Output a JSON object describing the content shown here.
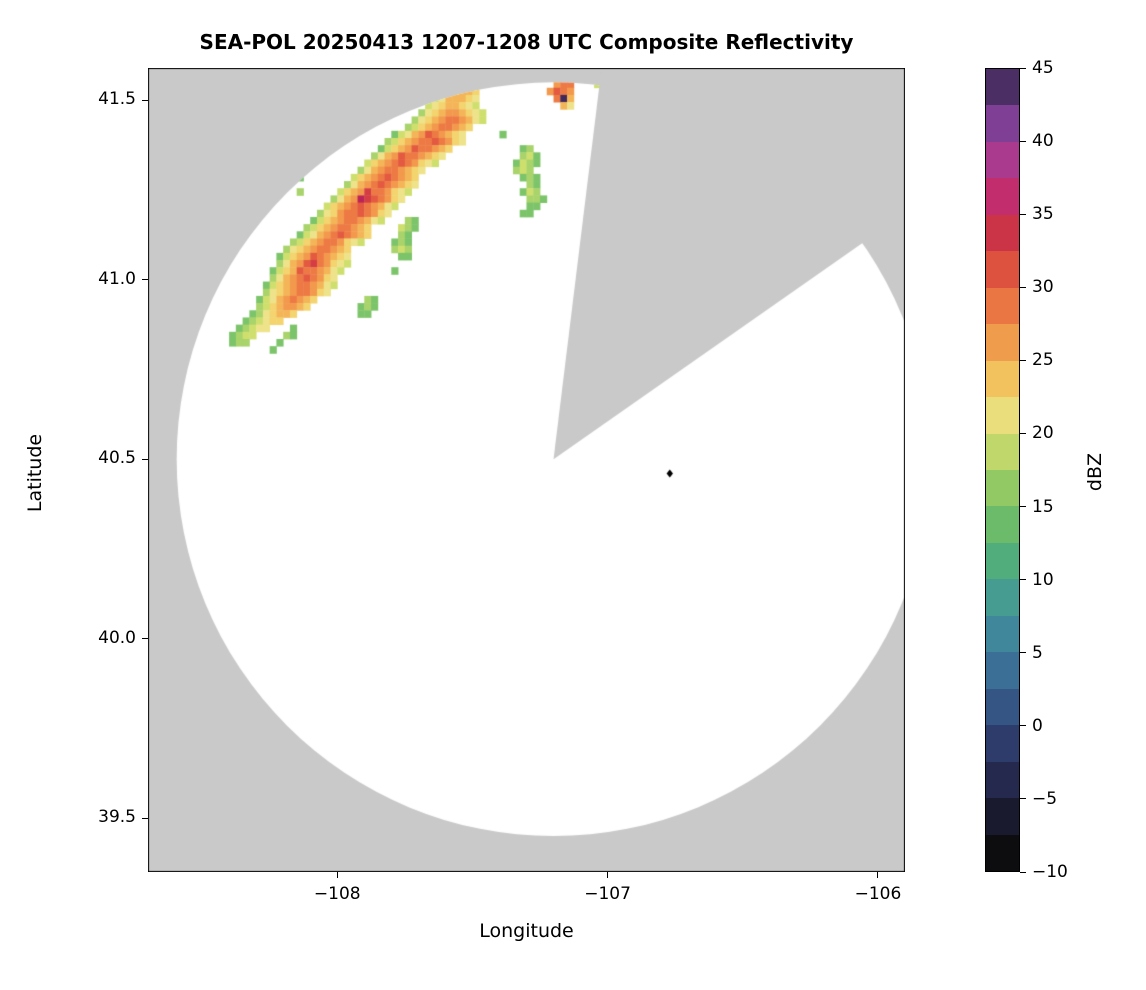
{
  "chart_data": {
    "type": "heatmap",
    "title": "SEA-POL 20250413 1207-1208 UTC Composite Reflectivity",
    "xlabel": "Longitude",
    "ylabel": "Latitude",
    "xlim": [
      -108.7,
      -105.9
    ],
    "ylim": [
      39.35,
      41.59
    ],
    "xticks": [
      -108,
      -107,
      -106
    ],
    "xtick_labels": [
      "−108",
      "−107",
      "−106"
    ],
    "yticks": [
      39.5,
      40.0,
      40.5,
      41.0,
      41.5
    ],
    "ytick_labels": [
      "39.5",
      "40.0",
      "40.5",
      "41.0",
      "41.5"
    ],
    "grid": false,
    "background_color": "#c9c9c9",
    "scan_area_color": "#ffffff",
    "colorbar": {
      "label": "dBZ",
      "min": -10,
      "max": 45,
      "ticks": [
        45,
        40,
        35,
        30,
        25,
        20,
        15,
        10,
        5,
        0,
        -5,
        -10
      ],
      "tick_labels": [
        "45",
        "40",
        "35",
        "30",
        "25",
        "20",
        "15",
        "10",
        "5",
        "0",
        "−5",
        "−10"
      ],
      "segment_colors": [
        "#0d0d10",
        "#191a2e",
        "#24294d",
        "#2d3c6a",
        "#355584",
        "#3c6f96",
        "#41879c",
        "#479c92",
        "#52ad7d",
        "#6cbb6a",
        "#93c965",
        "#c0d76c",
        "#eade7c",
        "#f2c25f",
        "#f09c4d",
        "#ea7643",
        "#dd513f",
        "#cb3347",
        "#c12d6d",
        "#a93a8e",
        "#7e3f94",
        "#4b2e63"
      ]
    },
    "radar": {
      "center_lon": -107.2,
      "center_lat": 40.5,
      "range_deg_lon": 1.394,
      "blocked_sector_azimuth_deg": [
        7,
        55
      ],
      "marker": {
        "lon": -106.77,
        "lat": 40.46,
        "color": "#000000"
      }
    },
    "echo_grid": {
      "comment": "Composite reflectivity cells; lon = lon_start + col*dlon, lat = lat_start - row*dlat; chars map to dBZ via level_dbz",
      "lon_start": -108.5,
      "lat_start": 41.575,
      "dlon": 0.025,
      "dlat": 0.02,
      "level_dbz": {
        "2": 13,
        "3": 15,
        "4": 17,
        "5": 19,
        "6": 21,
        "7": 23,
        "8": 25,
        "9": 27,
        "a": 29,
        "b": 31,
        "c": 34,
        "e": 44
      },
      "level_colors": {
        "2": "#7cc46a",
        "3": "#a9d36b",
        "4": "#cfdf6e",
        "5": "#eee38a",
        "6": "#f3d46e",
        "7": "#f4b558",
        "8": "#f2994d",
        "9": "#ed7a45",
        "a": "#e35a40",
        "b": "#d43d42",
        "c": "#bb2456",
        "e": "#42295b"
      },
      "cells": [
        [
          0,
          37,
          "466"
        ],
        [
          0,
          53,
          "89"
        ],
        [
          1,
          36,
          "45665"
        ],
        [
          1,
          52,
          "899"
        ],
        [
          1,
          58,
          "4"
        ],
        [
          2,
          35,
          "466776"
        ],
        [
          2,
          51,
          "8a98"
        ],
        [
          3,
          34,
          "4577765"
        ],
        [
          3,
          52,
          "9e7"
        ],
        [
          4,
          33,
          "45677654"
        ],
        [
          4,
          53,
          "75"
        ],
        [
          5,
          32,
          "3567887654"
        ],
        [
          6,
          31,
          "35678998754"
        ],
        [
          7,
          30,
          "3467899876"
        ],
        [
          8,
          28,
          "24578a98765"
        ],
        [
          8,
          44,
          "2"
        ],
        [
          9,
          27,
          "3467899a9865"
        ],
        [
          10,
          26,
          "24678a99876"
        ],
        [
          10,
          47,
          "23"
        ],
        [
          11,
          25,
          "3578a998765"
        ],
        [
          11,
          47,
          "342"
        ],
        [
          12,
          24,
          "46789a98654"
        ],
        [
          12,
          46,
          "2432"
        ],
        [
          13,
          23,
          "3578998765"
        ],
        [
          13,
          46,
          "343"
        ],
        [
          14,
          13,
          "42"
        ],
        [
          14,
          22,
          "46789a9876"
        ],
        [
          14,
          47,
          "232"
        ],
        [
          15,
          21,
          "35789a98765"
        ],
        [
          15,
          48,
          "32"
        ],
        [
          16,
          14,
          "3"
        ],
        [
          16,
          20,
          "4678b998654"
        ],
        [
          16,
          47,
          "243"
        ],
        [
          17,
          19,
          "3578cba9865"
        ],
        [
          17,
          48,
          "332"
        ],
        [
          18,
          18,
          "46789a98754"
        ],
        [
          18,
          48,
          "22"
        ],
        [
          19,
          17,
          "356899a9865"
        ],
        [
          19,
          47,
          "22"
        ],
        [
          20,
          16,
          "24678998754"
        ],
        [
          20,
          30,
          "32"
        ],
        [
          21,
          15,
          "3467899876"
        ],
        [
          21,
          29,
          "432"
        ],
        [
          22,
          14,
          "245789a9876"
        ],
        [
          22,
          29,
          "32"
        ],
        [
          23,
          4,
          "2"
        ],
        [
          23,
          13,
          "34678998654"
        ],
        [
          23,
          28,
          "232"
        ],
        [
          24,
          3,
          "23"
        ],
        [
          24,
          12,
          "3567899876"
        ],
        [
          24,
          28,
          "343"
        ],
        [
          25,
          11,
          "24678a98765"
        ],
        [
          25,
          29,
          "22"
        ],
        [
          26,
          11,
          "3578ab98654"
        ],
        [
          27,
          10,
          "2467a998754"
        ],
        [
          27,
          28,
          "2"
        ],
        [
          28,
          10,
          "35789a9865"
        ],
        [
          29,
          9,
          "24678998754"
        ],
        [
          30,
          9,
          "3567899865"
        ],
        [
          31,
          8,
          "245789876"
        ],
        [
          31,
          24,
          "32"
        ],
        [
          32,
          8,
          "34678876"
        ],
        [
          32,
          23,
          "232"
        ],
        [
          33,
          7,
          "2356776"
        ],
        [
          33,
          23,
          "22"
        ],
        [
          34,
          6,
          "234566"
        ],
        [
          35,
          5,
          "23455"
        ],
        [
          35,
          13,
          "2"
        ],
        [
          36,
          4,
          "2344"
        ],
        [
          36,
          12,
          "32"
        ],
        [
          37,
          4,
          "233"
        ],
        [
          37,
          11,
          "2"
        ],
        [
          38,
          10,
          "2"
        ]
      ]
    }
  }
}
